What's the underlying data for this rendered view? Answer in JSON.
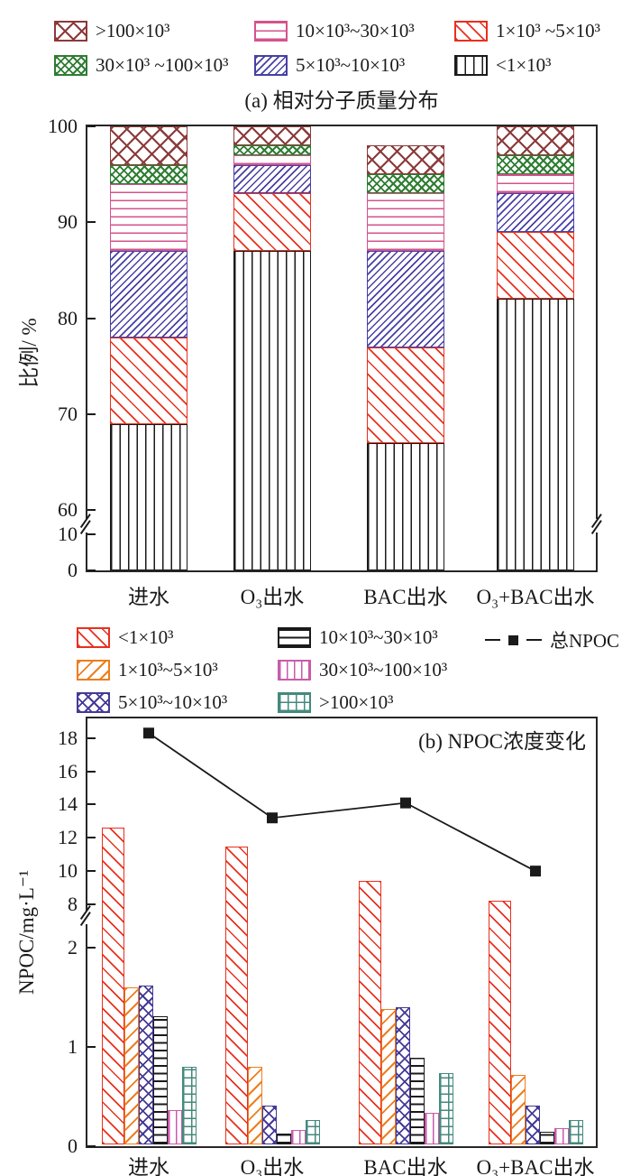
{
  "colors": {
    "red": "#e8301e",
    "orange": "#ee7d1d",
    "indigo_cross": "#433a97",
    "blue_backslash": "#4640a4",
    "magenta_h": "#d4538c",
    "magenta_v": "#c85bab",
    "green": "#2e7d32",
    "dark_red": "#8b3a3a",
    "teal": "#44897d",
    "line_black": "#1a1a1a"
  },
  "legend_a": {
    "items": [
      {
        "label": ">100×10³",
        "pattern": "darkred-crosshatch"
      },
      {
        "label": "10×10³~30×10³",
        "pattern": "magenta-hlines"
      },
      {
        "label": "1×10³ ~5×10³",
        "pattern": "red-slash"
      },
      {
        "label": "30×10³ ~100×10³",
        "pattern": "green-crosshatch"
      },
      {
        "label": "5×10³~10×10³",
        "pattern": "blue-backslash"
      },
      {
        "label": "<1×10³",
        "pattern": "black-vlines"
      }
    ]
  },
  "legend_b": {
    "items": [
      {
        "label": "<1×10³",
        "pattern": "red-slash"
      },
      {
        "label": "10×10³~30×10³",
        "pattern": "black-hlines"
      },
      {
        "label": "总NPOC",
        "pattern": "line-marker",
        "type": "line"
      },
      {
        "label": "1×10³~5×10³",
        "pattern": "orange-backslash"
      },
      {
        "label": "30×10³~100×10³",
        "pattern": "magenta-vlines"
      },
      {
        "label": "5×10³~10×10³",
        "pattern": "indigo-crosshatch"
      },
      {
        "label": ">100×10³",
        "pattern": "teal-grid"
      }
    ]
  },
  "chart_data": [
    {
      "type": "bar",
      "subtype": "stacked",
      "title": "(a) 相对分子质量分布",
      "ylabel": "比例/ %",
      "categories": [
        "进水",
        "O₃出水",
        "BAC出水",
        "O₃+BAC出水"
      ],
      "yticks": [
        0,
        10,
        60,
        70,
        80,
        90,
        100
      ],
      "ylim": [
        0,
        100
      ],
      "axis_break": [
        12,
        59
      ],
      "legend_position": "above",
      "grid": false,
      "series": [
        {
          "name": "<1×10³",
          "pattern": "black-vlines",
          "values": [
            69,
            87,
            67,
            82
          ]
        },
        {
          "name": "1×10³~5×10³",
          "pattern": "red-slash",
          "values": [
            9,
            6,
            10,
            7
          ]
        },
        {
          "name": "5×10³~10×10³",
          "pattern": "blue-backslash",
          "values": [
            9,
            3,
            10,
            4
          ]
        },
        {
          "name": "10×10³~30×10³",
          "pattern": "magenta-hlines",
          "values": [
            7,
            1,
            6,
            2
          ]
        },
        {
          "name": "30×10³~100×10³",
          "pattern": "green-crosshatch",
          "values": [
            2,
            1,
            2,
            2
          ]
        },
        {
          "name": ">100×10³",
          "pattern": "darkred-crosshatch",
          "values": [
            4,
            2,
            3,
            3
          ]
        }
      ]
    },
    {
      "type": "bar",
      "subtype": "grouped+line",
      "title": "(b) NPOC浓度变化",
      "ylabel": "NPOC/mg·L⁻¹",
      "categories": [
        "进水",
        "O₃出水",
        "BAC出水",
        "O₃+BAC出水"
      ],
      "yticks": [
        0,
        1,
        2,
        8,
        10,
        12,
        14,
        16,
        18
      ],
      "ylim": [
        0,
        19.3
      ],
      "axis_break": [
        2.35,
        7.6
      ],
      "grid": false,
      "series": [
        {
          "name": "<1×10³",
          "pattern": "red-slash",
          "values": [
            12.6,
            11.5,
            9.4,
            8.2
          ]
        },
        {
          "name": "1×10³~5×10³",
          "pattern": "orange-backslash",
          "values": [
            1.6,
            0.8,
            1.38,
            0.72
          ]
        },
        {
          "name": "5×10³~10×10³",
          "pattern": "indigo-crosshatch",
          "values": [
            1.62,
            0.41,
            1.4,
            0.41
          ]
        },
        {
          "name": "10×10³~30×10³",
          "pattern": "black-hlines",
          "values": [
            1.31,
            0.13,
            0.89,
            0.15
          ]
        },
        {
          "name": "30×10³~100×10³",
          "pattern": "magenta-vlines",
          "values": [
            0.36,
            0.16,
            0.34,
            0.18
          ]
        },
        {
          "name": ">100×10³",
          "pattern": "teal-grid",
          "values": [
            0.8,
            0.26,
            0.74,
            0.26
          ]
        }
      ],
      "line_series": {
        "name": "总NPOC",
        "values": [
          18.3,
          13.2,
          14.1,
          10.0
        ],
        "color": "#1a1a1a"
      }
    }
  ]
}
